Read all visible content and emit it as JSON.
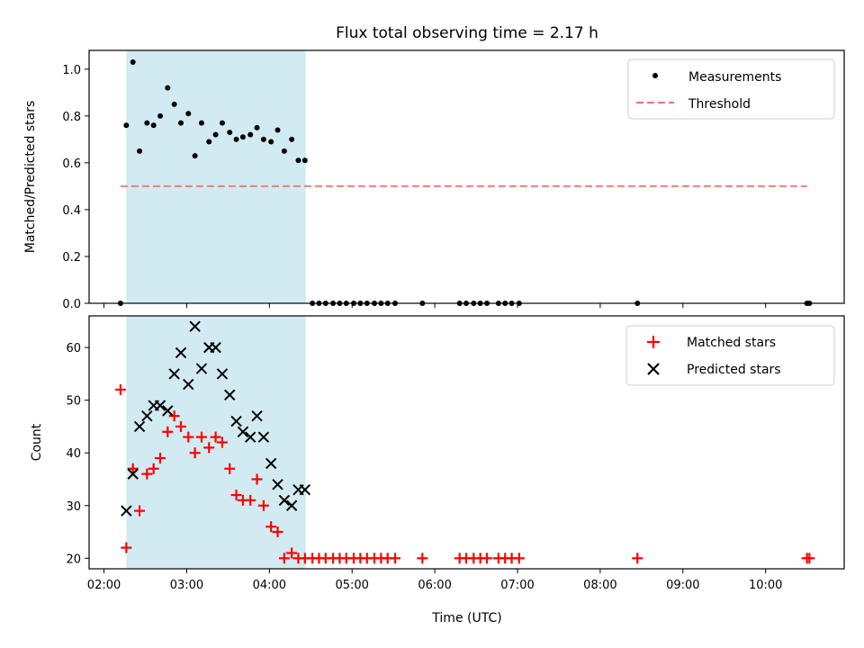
{
  "chart_data": [
    {
      "type": "scatter",
      "title": "Flux total observing time = 2.17 h",
      "xlabel": "",
      "ylabel": "Matched/Predicted stars",
      "ylim": [
        0,
        1.08
      ],
      "yticks": [
        "0.0",
        "0.2",
        "0.4",
        "0.6",
        "0.8",
        "1.0"
      ],
      "ytick_values": [
        0,
        0.2,
        0.4,
        0.6,
        0.8,
        1.0
      ],
      "xlim_hours": [
        1.82,
        10.95
      ],
      "legend_position": "top-right",
      "highlight_span_hours": [
        2.27,
        4.44
      ],
      "highlight_color": "#add8e6",
      "series": [
        {
          "name": "Measurements",
          "marker": "dot",
          "color": "#000000",
          "x_hours": [
            2.2,
            2.27,
            2.35,
            2.43,
            2.52,
            2.6,
            2.68,
            2.77,
            2.85,
            2.93,
            3.02,
            3.1,
            3.18,
            3.27,
            3.35,
            3.43,
            3.52,
            3.6,
            3.68,
            3.77,
            3.85,
            3.93,
            4.02,
            4.1,
            4.18,
            4.27,
            4.35,
            4.43,
            4.52,
            4.6,
            4.68,
            4.77,
            4.85,
            4.93,
            5.02,
            5.1,
            5.18,
            5.27,
            5.35,
            5.43,
            5.52,
            5.85,
            6.3,
            6.38,
            6.47,
            6.55,
            6.63,
            6.77,
            6.85,
            6.93,
            7.02,
            8.45,
            10.5,
            10.53
          ],
          "y": [
            0,
            0.76,
            1.03,
            0.65,
            0.77,
            0.76,
            0.8,
            0.92,
            0.85,
            0.77,
            0.81,
            0.63,
            0.77,
            0.69,
            0.72,
            0.77,
            0.73,
            0.7,
            0.71,
            0.72,
            0.75,
            0.7,
            0.69,
            0.74,
            0.65,
            0.7,
            0.61,
            0.61,
            0,
            0,
            0,
            0,
            0,
            0,
            0,
            0,
            0,
            0,
            0,
            0,
            0,
            0,
            0,
            0,
            0,
            0,
            0,
            0,
            0,
            0,
            0,
            0,
            0,
            0
          ]
        },
        {
          "name": "Threshold",
          "style": "dashed",
          "color": "#ff6b6b",
          "x_hours": [
            2.2,
            10.5
          ],
          "y": [
            0.5,
            0.5
          ]
        }
      ]
    },
    {
      "type": "scatter",
      "xlabel": "Time (UTC)",
      "ylabel": "Count",
      "ylim": [
        18,
        66
      ],
      "yticks": [
        "20",
        "30",
        "40",
        "50",
        "60"
      ],
      "ytick_values": [
        20,
        30,
        40,
        50,
        60
      ],
      "xticks": [
        "02:00",
        "03:00",
        "04:00",
        "05:00",
        "06:00",
        "07:00",
        "08:00",
        "09:00",
        "10:00"
      ],
      "xtick_hours": [
        2,
        3,
        4,
        5,
        6,
        7,
        8,
        9,
        10
      ],
      "xlim_hours": [
        1.82,
        10.95
      ],
      "legend_position": "top-right",
      "highlight_span_hours": [
        2.27,
        4.44
      ],
      "highlight_color": "#add8e6",
      "series": [
        {
          "name": "Matched stars",
          "marker": "plus",
          "color": "#ff0000",
          "x_hours": [
            2.2,
            2.27,
            2.35,
            2.43,
            2.52,
            2.6,
            2.68,
            2.77,
            2.85,
            2.93,
            3.02,
            3.1,
            3.18,
            3.27,
            3.35,
            3.43,
            3.52,
            3.6,
            3.68,
            3.77,
            3.85,
            3.93,
            4.02,
            4.1,
            4.18,
            4.27,
            4.35,
            4.43,
            4.52,
            4.6,
            4.68,
            4.77,
            4.85,
            4.93,
            5.02,
            5.1,
            5.18,
            5.27,
            5.35,
            5.43,
            5.52,
            5.85,
            6.3,
            6.38,
            6.47,
            6.55,
            6.63,
            6.77,
            6.85,
            6.93,
            7.02,
            8.45,
            10.5,
            10.53
          ],
          "y": [
            52,
            22,
            37,
            29,
            36,
            37,
            39,
            44,
            47,
            45,
            43,
            40,
            43,
            41,
            43,
            42,
            37,
            32,
            31,
            31,
            35,
            30,
            26,
            25,
            20,
            21,
            20,
            20,
            20,
            20,
            20,
            20,
            20,
            20,
            20,
            20,
            20,
            20,
            20,
            20,
            20,
            20,
            20,
            20,
            20,
            20,
            20,
            20,
            20,
            20,
            20,
            20,
            20,
            20
          ]
        },
        {
          "name": "Predicted stars",
          "marker": "x",
          "color": "#000000",
          "x_hours": [
            2.27,
            2.35,
            2.43,
            2.52,
            2.6,
            2.68,
            2.77,
            2.85,
            2.93,
            3.02,
            3.1,
            3.18,
            3.27,
            3.35,
            3.43,
            3.52,
            3.6,
            3.68,
            3.77,
            3.85,
            3.93,
            4.02,
            4.1,
            4.18,
            4.27,
            4.35,
            4.43
          ],
          "y": [
            29,
            36,
            45,
            47,
            49,
            49,
            48,
            55,
            59,
            53,
            64,
            56,
            60,
            60,
            55,
            51,
            46,
            44,
            43,
            47,
            43,
            38,
            34,
            31,
            30,
            33,
            33
          ]
        }
      ]
    }
  ]
}
